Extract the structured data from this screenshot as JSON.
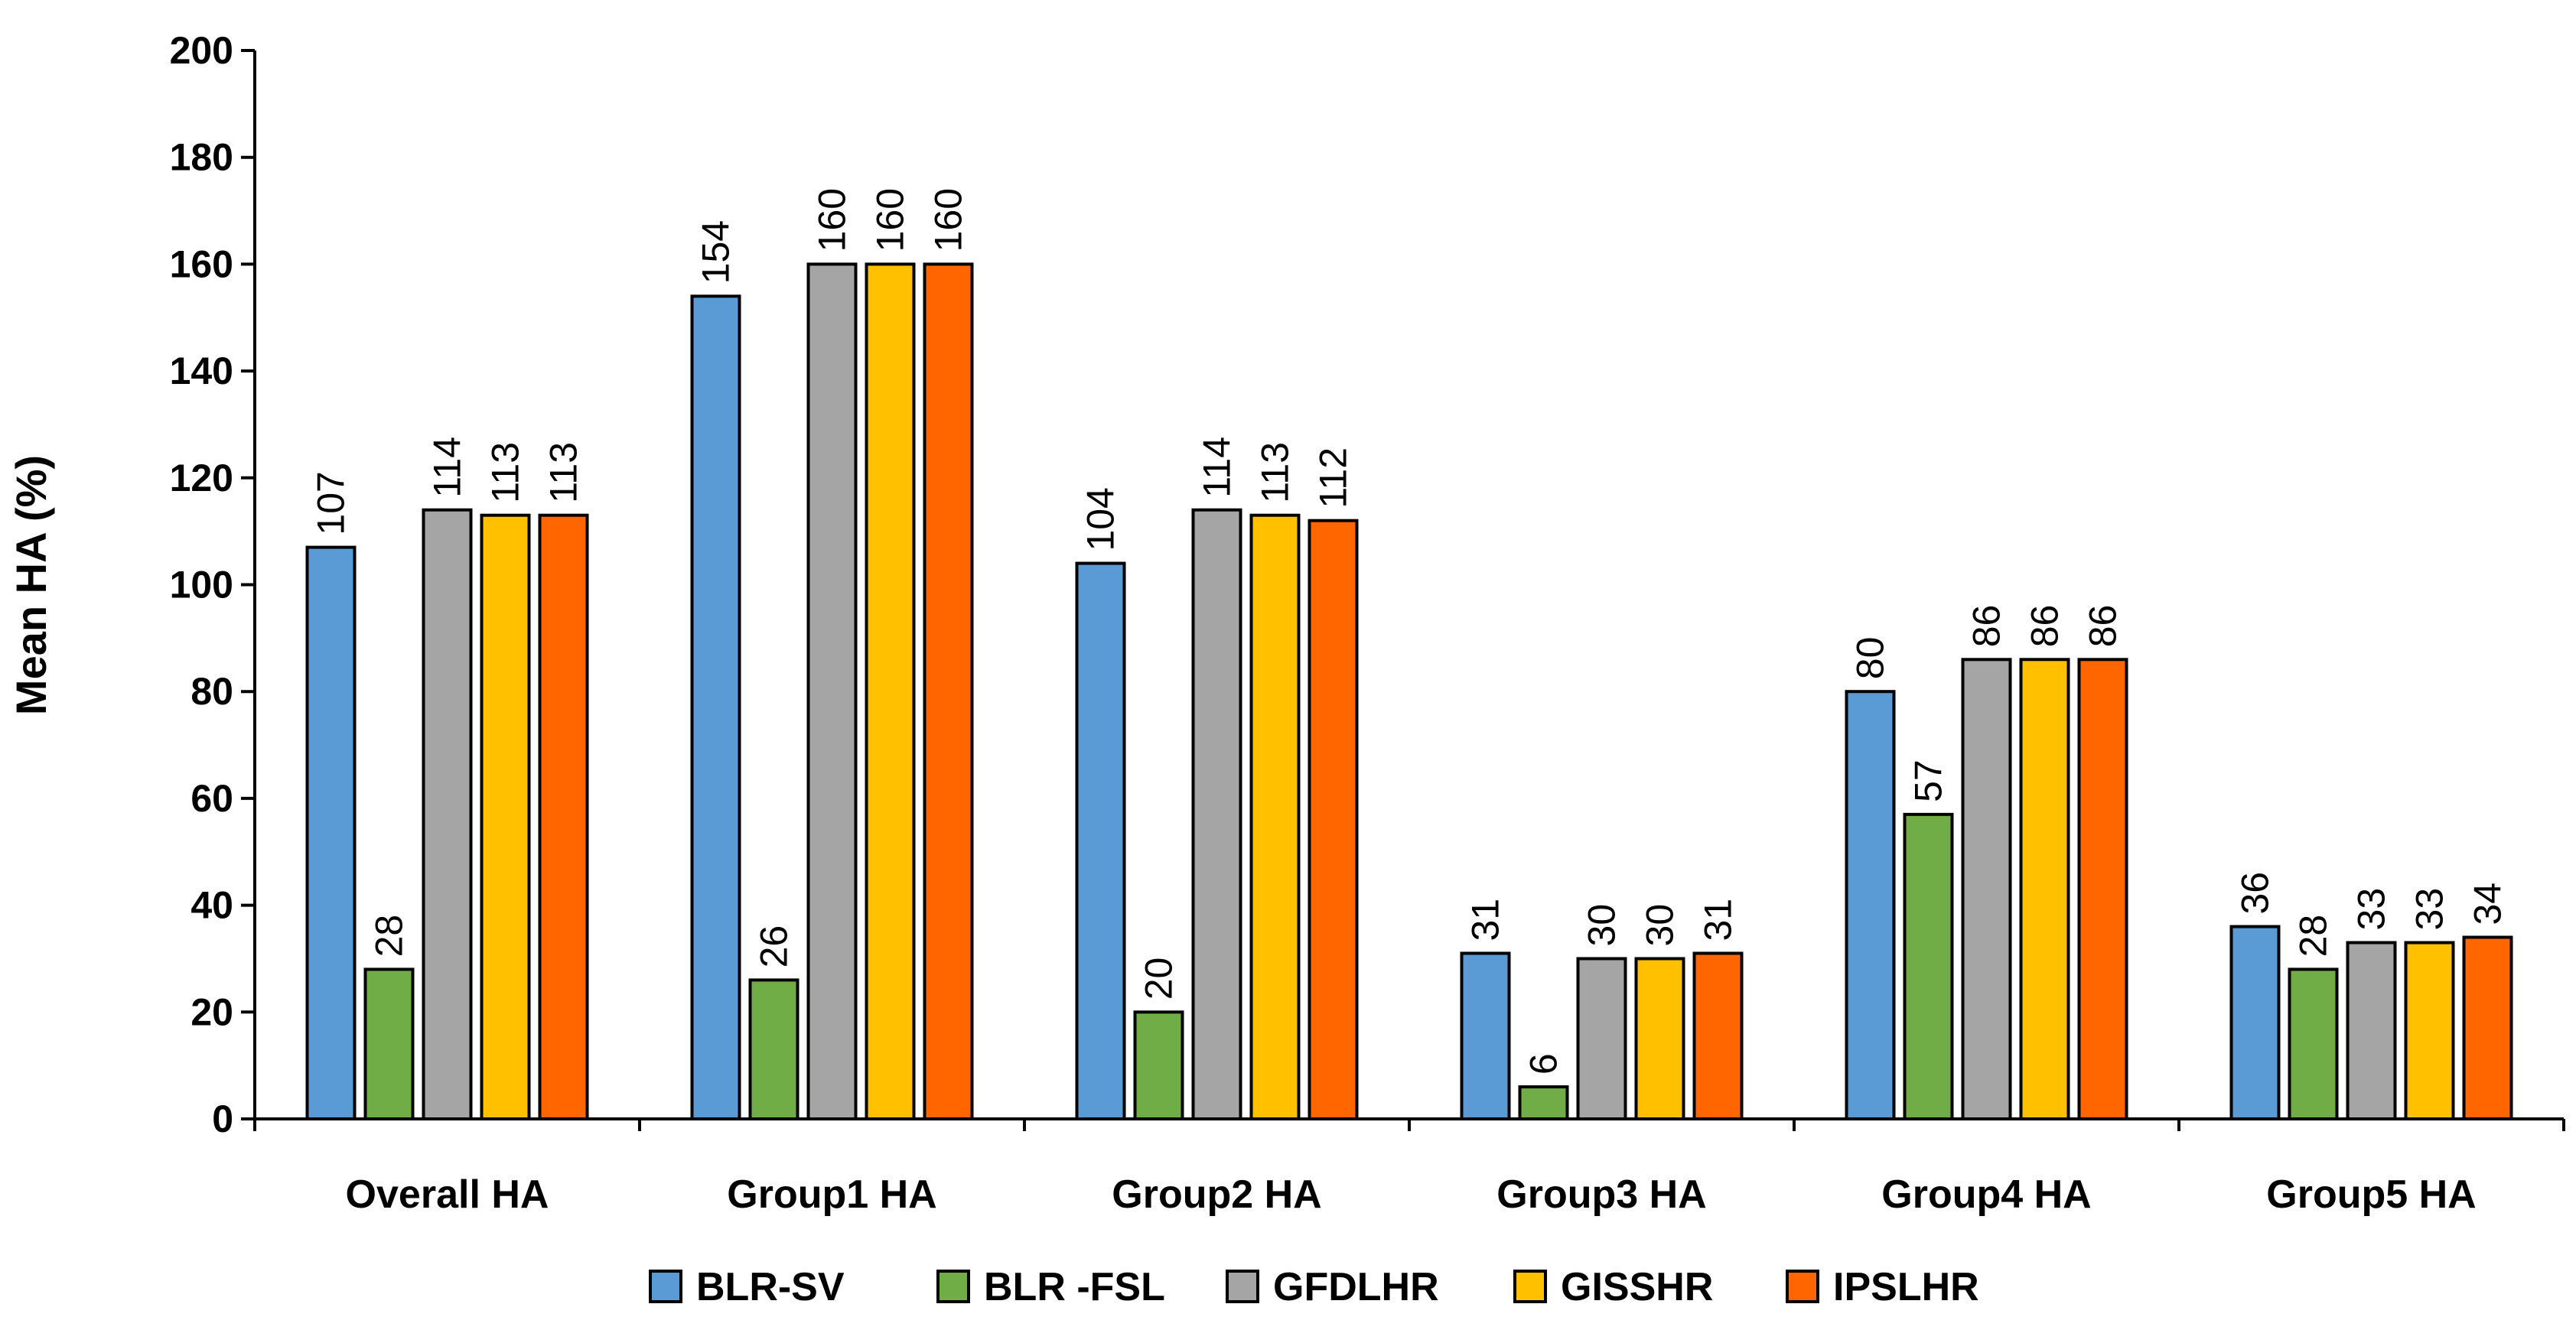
{
  "chart_data": {
    "type": "bar",
    "title": "",
    "xlabel": "",
    "ylabel": "Mean HA (%)",
    "ylim": [
      0,
      200
    ],
    "yticks": [
      0,
      20,
      40,
      60,
      80,
      100,
      120,
      140,
      160,
      180,
      200
    ],
    "grid": false,
    "legend_position": "bottom",
    "categories": [
      "Overall HA",
      "Group1 HA",
      "Group2 HA",
      "Group3 HA",
      "Group4 HA",
      "Group5 HA"
    ],
    "series": [
      {
        "name": "BLR-SV",
        "color": "#5B9BD5",
        "values": [
          107,
          154,
          104,
          31,
          80,
          36
        ]
      },
      {
        "name": "BLR -FSL",
        "color": "#70AD47",
        "values": [
          28,
          26,
          20,
          6,
          57,
          28
        ]
      },
      {
        "name": "GFDLHR",
        "color": "#A5A5A5",
        "values": [
          114,
          160,
          114,
          30,
          86,
          33
        ]
      },
      {
        "name": "GISSHR",
        "color": "#FFC000",
        "values": [
          113,
          160,
          113,
          30,
          86,
          33
        ]
      },
      {
        "name": "IPSLHR",
        "color": "#FF6600",
        "values": [
          113,
          160,
          112,
          31,
          86,
          34
        ]
      }
    ]
  }
}
